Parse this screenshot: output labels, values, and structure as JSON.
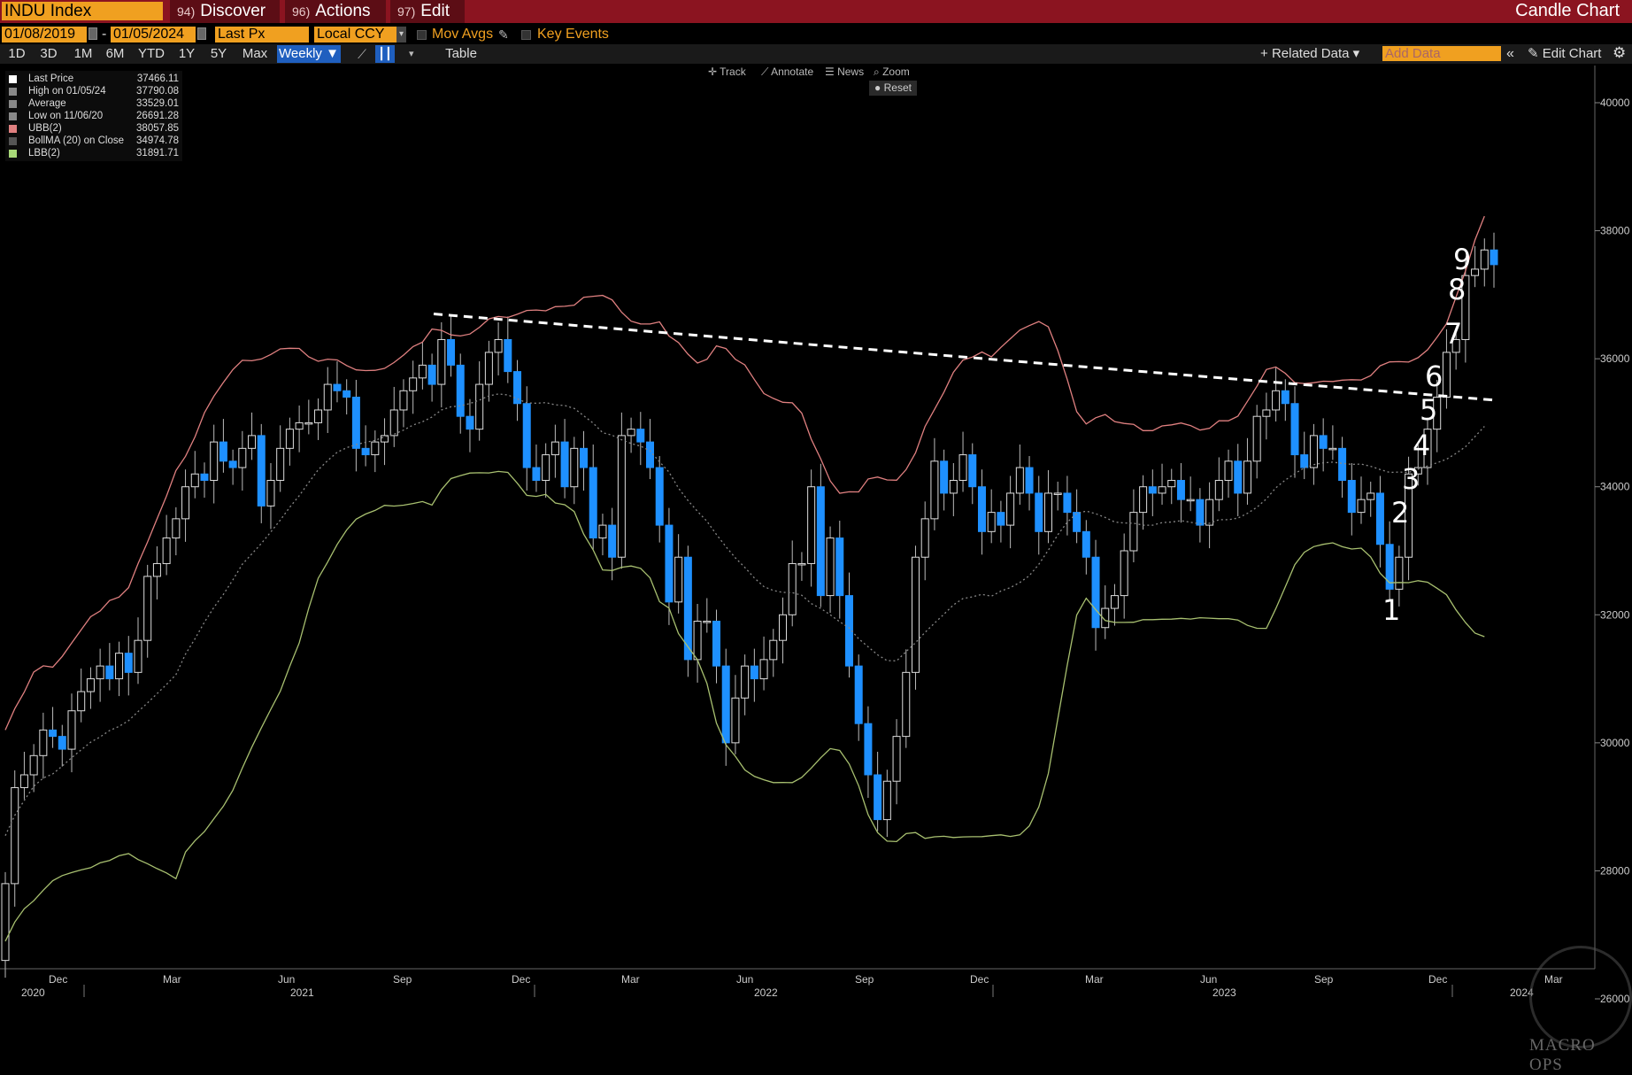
{
  "toolbar": {
    "ticker": "INDU Index",
    "discover_num": "94)",
    "discover": "Discover",
    "actions_num": "96)",
    "actions": "Actions",
    "edit_num": "97)",
    "edit": "Edit",
    "chart_type": "Candle Chart"
  },
  "controls": {
    "start_date": "01/08/2019",
    "end_date": "01/05/2024",
    "field": "Last Px",
    "currency": "Local CCY",
    "mov_avgs": "Mov Avgs",
    "key_events": "Key Events",
    "periods": [
      "1D",
      "3D",
      "1M",
      "6M",
      "YTD",
      "1Y",
      "5Y",
      "Max"
    ],
    "frequency": "Weekly",
    "table": "Table",
    "related_data": "Related Data",
    "add_data_placeholder": "Add Data",
    "edit_chart": "Edit Chart",
    "tools": [
      "Track",
      "Annotate",
      "News",
      "Zoom"
    ],
    "reset": "Reset"
  },
  "legend": [
    {
      "name": "Last Price",
      "value": "37466.11",
      "color": "#ffffff"
    },
    {
      "name": "High on 01/05/24",
      "value": "37790.08",
      "color": "#888888"
    },
    {
      "name": "Average",
      "value": "33529.01",
      "color": "#888888"
    },
    {
      "name": "Low on 11/06/20",
      "value": "26691.28",
      "color": "#888888"
    },
    {
      "name": "UBB(2)",
      "value": "38057.85",
      "color": "#e08080"
    },
    {
      "name": "BollMA (20)  on Close",
      "value": "34974.78",
      "color": "#555555"
    },
    {
      "name": "LBB(2)",
      "value": "31891.71",
      "color": "#a8d878"
    }
  ],
  "chart_data": {
    "type": "candlestick",
    "y_ticks": [
      26000,
      28000,
      30000,
      32000,
      34000,
      36000,
      38000,
      40000
    ],
    "y_tick_labels": [
      "26000",
      "28000",
      "30000",
      "32000",
      "34000",
      "36000",
      "38000",
      "40000"
    ],
    "ylim": [
      25400,
      40600
    ],
    "x_month_labels": [
      "Dec",
      "Mar",
      "Jun",
      "Sep",
      "Dec",
      "Mar",
      "Jun",
      "Sep",
      "Dec",
      "Mar",
      "Jun",
      "Sep",
      "Dec",
      "Mar"
    ],
    "x_year_labels": [
      "2020",
      "2021",
      "2022",
      "2023",
      "2024"
    ],
    "closes": [
      27800,
      29300,
      29500,
      29800,
      30200,
      30100,
      29900,
      30500,
      30800,
      31000,
      31200,
      31000,
      31400,
      31100,
      31600,
      32600,
      32800,
      33200,
      33500,
      34000,
      34200,
      34100,
      34700,
      34400,
      34300,
      34600,
      34800,
      33700,
      34100,
      34600,
      34900,
      35000,
      35000,
      35200,
      35600,
      35500,
      35400,
      34600,
      34500,
      34700,
      34800,
      35200,
      35500,
      35700,
      35900,
      35600,
      36300,
      35900,
      35100,
      34900,
      35600,
      36100,
      36300,
      35800,
      35300,
      34300,
      34100,
      34500,
      34700,
      34000,
      34600,
      34300,
      33200,
      33400,
      32900,
      34800,
      34900,
      34700,
      34300,
      33400,
      32200,
      32900,
      31300,
      31900,
      31900,
      31200,
      30000,
      30700,
      31200,
      31000,
      31300,
      31600,
      32000,
      32800,
      32800,
      34000,
      32300,
      33200,
      32300,
      31200,
      30300,
      29500,
      28800,
      29400,
      30100,
      31100,
      32900,
      33500,
      34400,
      33900,
      34100,
      34500,
      34000,
      33300,
      33600,
      33400,
      33900,
      34300,
      33900,
      33300,
      33900,
      33900,
      33600,
      33300,
      32900,
      31800,
      32100,
      32300,
      33000,
      33600,
      34000,
      33900,
      34000,
      34100,
      33800,
      33800,
      33400,
      33800,
      34100,
      34400,
      33900,
      34400,
      35100,
      35200,
      35500,
      35300,
      34500,
      34300,
      34800,
      34600,
      34600,
      34100,
      33600,
      33800,
      33900,
      33100,
      32400,
      32900,
      34200,
      34300,
      34900,
      35400,
      36100,
      36300,
      37300,
      37400,
      37700,
      37470
    ],
    "series": [
      {
        "name": "UBB(2)",
        "color": "#e08080"
      },
      {
        "name": "BollMA (20)",
        "color": "#888888"
      },
      {
        "name": "LBB(2)",
        "color": "#a8c070"
      }
    ],
    "trendline": [
      [
        36700,
        0.27
      ],
      [
        35350,
        1.0
      ]
    ],
    "annotations": [
      "1",
      "2",
      "3",
      "4",
      "5",
      "6",
      "7",
      "8",
      "9"
    ]
  },
  "watermark": "MACRO OPS"
}
